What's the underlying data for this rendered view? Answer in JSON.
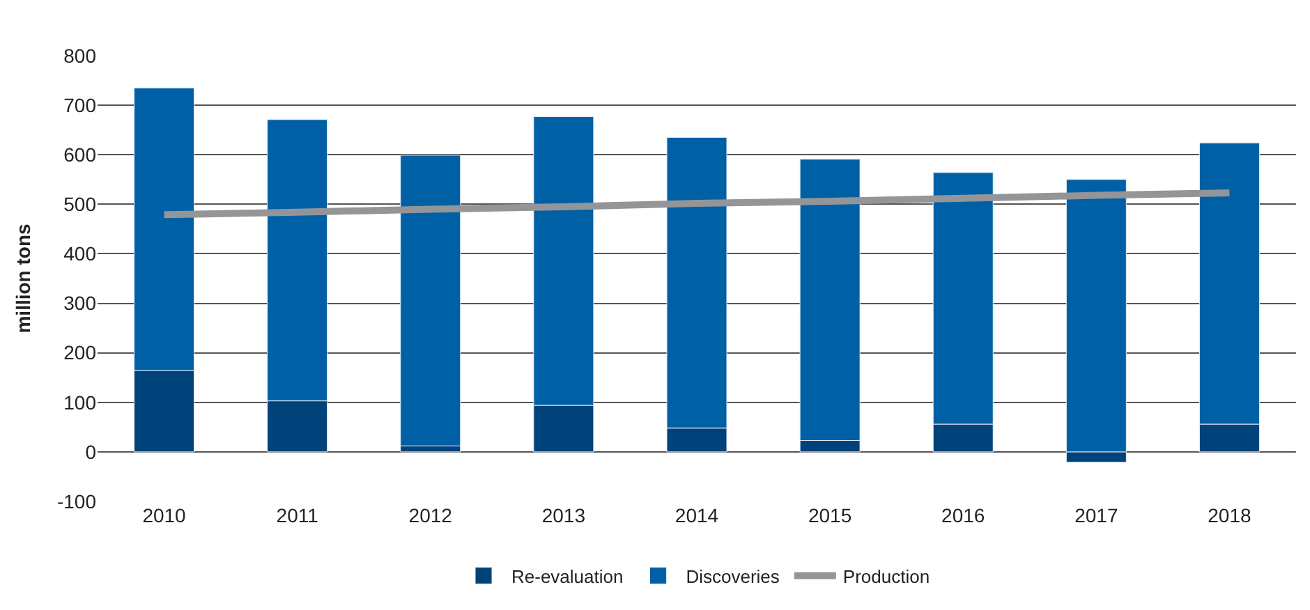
{
  "chart_data": {
    "type": "bar",
    "stacked": true,
    "ylabel": "million tons",
    "categories": [
      "2010",
      "2011",
      "2012",
      "2013",
      "2014",
      "2015",
      "2016",
      "2017",
      "2018"
    ],
    "series": [
      {
        "name": "Re-evaluation",
        "color": "#00427a",
        "values": [
          164,
          103,
          12,
          94,
          48,
          23,
          56,
          -21,
          56
        ]
      },
      {
        "name": "Discoveries",
        "color": "#0060a5",
        "values": [
          571,
          568,
          587,
          583,
          587,
          568,
          508,
          550,
          568
        ]
      },
      {
        "name": "Production",
        "type": "line",
        "color": "#939598",
        "values": [
          479,
          484,
          490,
          495,
          502,
          506,
          512,
          518,
          523
        ]
      }
    ],
    "ylim": [
      -100,
      800
    ],
    "yticks": [
      -100,
      0,
      100,
      200,
      300,
      400,
      500,
      600,
      700,
      800
    ],
    "grid": "y",
    "legend": "bottom",
    "marker": "none",
    "line_style": "solid"
  }
}
